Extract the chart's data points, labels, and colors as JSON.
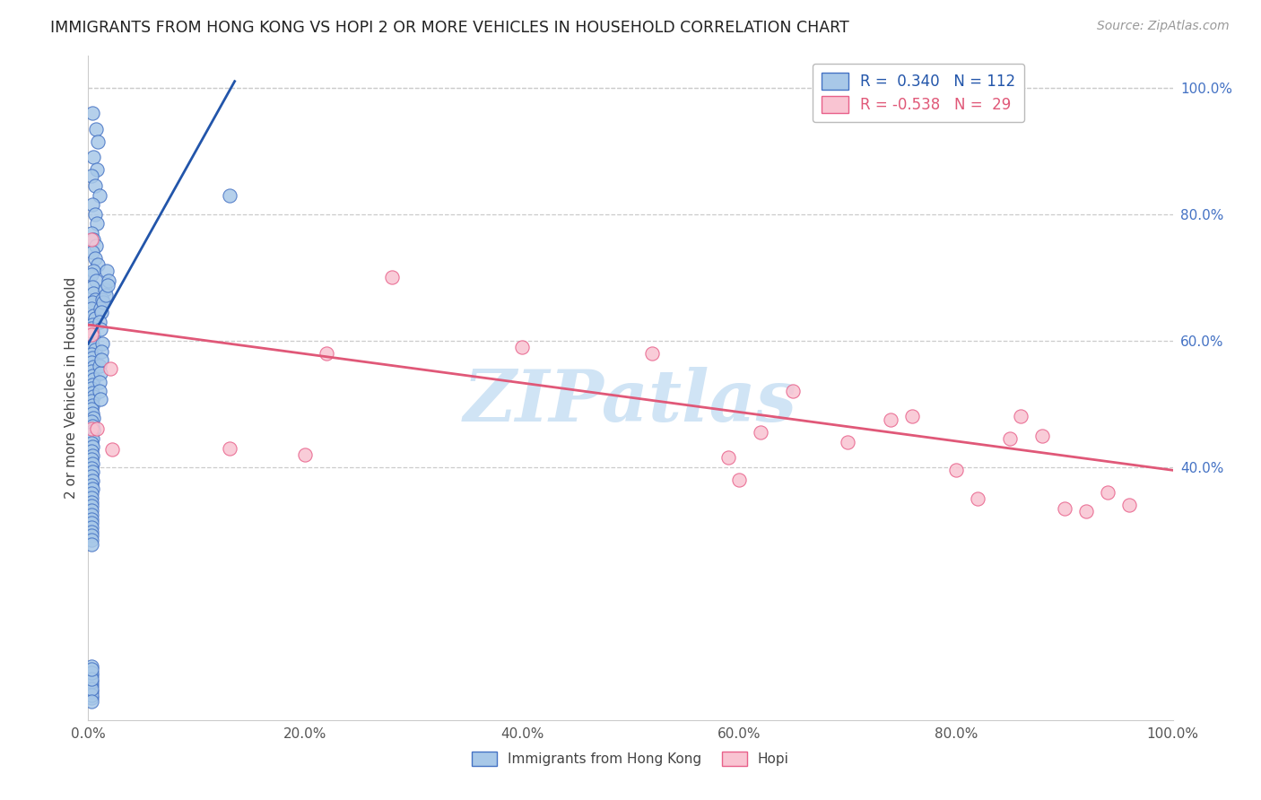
{
  "title": "IMMIGRANTS FROM HONG KONG VS HOPI 2 OR MORE VEHICLES IN HOUSEHOLD CORRELATION CHART",
  "source": "Source: ZipAtlas.com",
  "ylabel": "2 or more Vehicles in Household",
  "legend_bottom1": "Immigrants from Hong Kong",
  "legend_bottom2": "Hopi",
  "blue_color": "#a8c8e8",
  "blue_edge_color": "#4472c4",
  "pink_color": "#f9c4d2",
  "pink_edge_color": "#e8608a",
  "blue_line_color": "#2255aa",
  "pink_line_color": "#e05878",
  "watermark_color": "#d0e4f5",
  "right_tick_color": "#4472c4",
  "blue_scatter_x": [
    0.004,
    0.007,
    0.009,
    0.005,
    0.008,
    0.003,
    0.006,
    0.01,
    0.004,
    0.006,
    0.008,
    0.003,
    0.005,
    0.007,
    0.004,
    0.006,
    0.009,
    0.005,
    0.003,
    0.007,
    0.004,
    0.005,
    0.006,
    0.004,
    0.003,
    0.005,
    0.006,
    0.004,
    0.003,
    0.004,
    0.005,
    0.003,
    0.004,
    0.006,
    0.003,
    0.004,
    0.003,
    0.005,
    0.003,
    0.004,
    0.005,
    0.004,
    0.003,
    0.004,
    0.005,
    0.003,
    0.004,
    0.003,
    0.004,
    0.005,
    0.003,
    0.004,
    0.005,
    0.003,
    0.004,
    0.003,
    0.004,
    0.003,
    0.004,
    0.003,
    0.004,
    0.003,
    0.004,
    0.003,
    0.004,
    0.003,
    0.004,
    0.003,
    0.003,
    0.003,
    0.003,
    0.003,
    0.003,
    0.003,
    0.003,
    0.003,
    0.003,
    0.003,
    0.003,
    0.003,
    0.13,
    0.017,
    0.015,
    0.013,
    0.011,
    0.019,
    0.014,
    0.012,
    0.016,
    0.018,
    0.01,
    0.011,
    0.013,
    0.012,
    0.01,
    0.011,
    0.01,
    0.012,
    0.01,
    0.011,
    0.003,
    0.003,
    0.003,
    0.003,
    0.003,
    0.003,
    0.003,
    0.003,
    0.003,
    0.003,
    0.003,
    0.003
  ],
  "blue_scatter_y": [
    0.96,
    0.935,
    0.915,
    0.89,
    0.87,
    0.86,
    0.845,
    0.83,
    0.815,
    0.8,
    0.785,
    0.77,
    0.76,
    0.75,
    0.74,
    0.73,
    0.72,
    0.71,
    0.705,
    0.695,
    0.685,
    0.675,
    0.665,
    0.66,
    0.65,
    0.64,
    0.635,
    0.625,
    0.62,
    0.615,
    0.608,
    0.6,
    0.592,
    0.585,
    0.578,
    0.572,
    0.565,
    0.558,
    0.552,
    0.545,
    0.538,
    0.53,
    0.525,
    0.518,
    0.512,
    0.505,
    0.498,
    0.492,
    0.485,
    0.478,
    0.472,
    0.465,
    0.458,
    0.452,
    0.445,
    0.438,
    0.432,
    0.425,
    0.418,
    0.412,
    0.405,
    0.398,
    0.392,
    0.385,
    0.378,
    0.372,
    0.365,
    0.358,
    0.352,
    0.345,
    0.338,
    0.332,
    0.325,
    0.318,
    0.312,
    0.305,
    0.298,
    0.292,
    0.285,
    0.278,
    0.83,
    0.71,
    0.68,
    0.665,
    0.65,
    0.695,
    0.66,
    0.645,
    0.672,
    0.688,
    0.63,
    0.618,
    0.595,
    0.582,
    0.56,
    0.548,
    0.535,
    0.57,
    0.52,
    0.508,
    0.055,
    0.07,
    0.085,
    0.035,
    0.045,
    0.06,
    0.075,
    0.04,
    0.05,
    0.065,
    0.08,
    0.03
  ],
  "pink_scatter_x": [
    0.003,
    0.003,
    0.003,
    0.003,
    0.008,
    0.02,
    0.022,
    0.13,
    0.2,
    0.22,
    0.28,
    0.4,
    0.52,
    0.59,
    0.6,
    0.62,
    0.65,
    0.7,
    0.74,
    0.76,
    0.8,
    0.82,
    0.85,
    0.86,
    0.88,
    0.9,
    0.92,
    0.94,
    0.96
  ],
  "pink_scatter_y": [
    0.76,
    0.615,
    0.61,
    0.46,
    0.46,
    0.555,
    0.428,
    0.43,
    0.42,
    0.58,
    0.7,
    0.59,
    0.58,
    0.415,
    0.38,
    0.455,
    0.52,
    0.44,
    0.475,
    0.48,
    0.395,
    0.35,
    0.445,
    0.48,
    0.45,
    0.335,
    0.33,
    0.36,
    0.34
  ],
  "blue_line_x0": 0.0,
  "blue_line_x1": 0.135,
  "blue_line_y0": 0.595,
  "blue_line_y1": 1.01,
  "pink_line_x0": 0.0,
  "pink_line_x1": 1.0,
  "pink_line_y0": 0.625,
  "pink_line_y1": 0.395,
  "xlim": [
    0.0,
    1.0
  ],
  "ylim": [
    0.0,
    1.05
  ],
  "xticks": [
    0.0,
    0.2,
    0.4,
    0.6,
    0.8,
    1.0
  ],
  "xticklabels": [
    "0.0%",
    "20.0%",
    "40.0%",
    "60.0%",
    "80.0%",
    "100.0%"
  ],
  "right_yticks": [
    0.4,
    0.6,
    0.8,
    1.0
  ],
  "right_yticklabels": [
    "40.0%",
    "60.0%",
    "80.0%",
    "100.0%"
  ],
  "grid_yticks": [
    0.4,
    0.6,
    0.8,
    1.0
  ],
  "legend_R1": "R =",
  "legend_val1": " 0.340",
  "legend_N1": "N = 112",
  "legend_R2": "R =",
  "legend_val2": "-0.538",
  "legend_N2": "N =  29"
}
